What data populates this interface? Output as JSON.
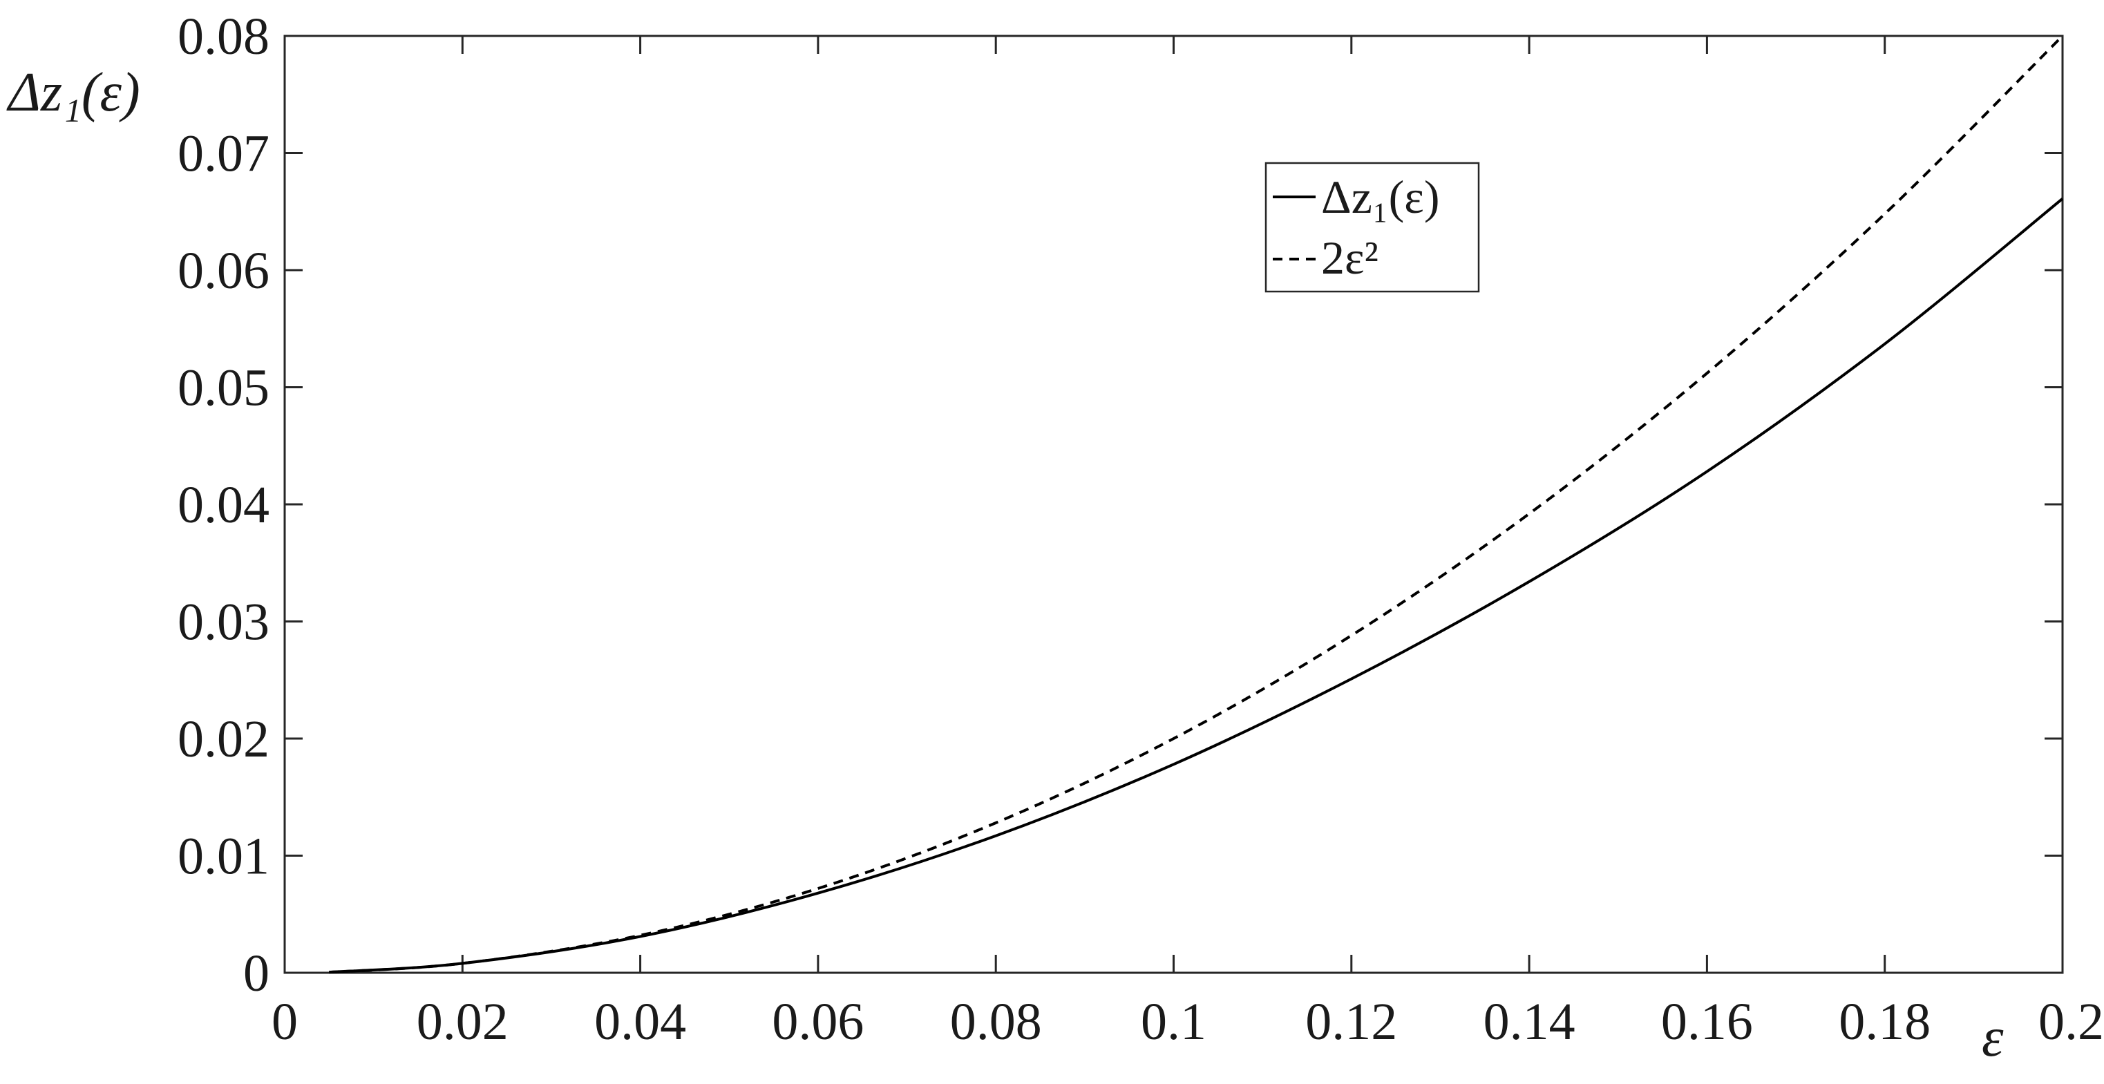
{
  "chart_data": {
    "type": "line",
    "title": "",
    "xlabel": "ε",
    "ylabel": "Δz₁(ε)",
    "xlim": [
      0,
      0.2
    ],
    "ylim": [
      0,
      0.08
    ],
    "x_ticks": [
      "0",
      "0.02",
      "0.04",
      "0.06",
      "0.08",
      "0.1",
      "0.12",
      "0.14",
      "0.16",
      "0.18",
      "0.2"
    ],
    "y_ticks": [
      "0",
      "0.01",
      "0.02",
      "0.03",
      "0.04",
      "0.05",
      "0.06",
      "0.07",
      "0.08"
    ],
    "grid": false,
    "legend_position": "top-right",
    "series": [
      {
        "name": "Δz₁(ε)",
        "style": "solid",
        "color": "#000000",
        "x": [
          0.005,
          0.02,
          0.04,
          0.06,
          0.08,
          0.1,
          0.12,
          0.14,
          0.16,
          0.18,
          0.2
        ],
        "y": [
          5e-05,
          0.0008,
          0.0031,
          0.0068,
          0.0117,
          0.0178,
          0.0251,
          0.0334,
          0.0428,
          0.0537,
          0.0661
        ]
      },
      {
        "name": "2ε²",
        "style": "dashed",
        "color": "#000000",
        "x": [
          0.005,
          0.02,
          0.04,
          0.06,
          0.08,
          0.1,
          0.12,
          0.14,
          0.16,
          0.18,
          0.2
        ],
        "y": [
          5e-05,
          0.0008,
          0.0032,
          0.0072,
          0.0128,
          0.02,
          0.0288,
          0.0392,
          0.0512,
          0.0648,
          0.08
        ]
      }
    ]
  }
}
